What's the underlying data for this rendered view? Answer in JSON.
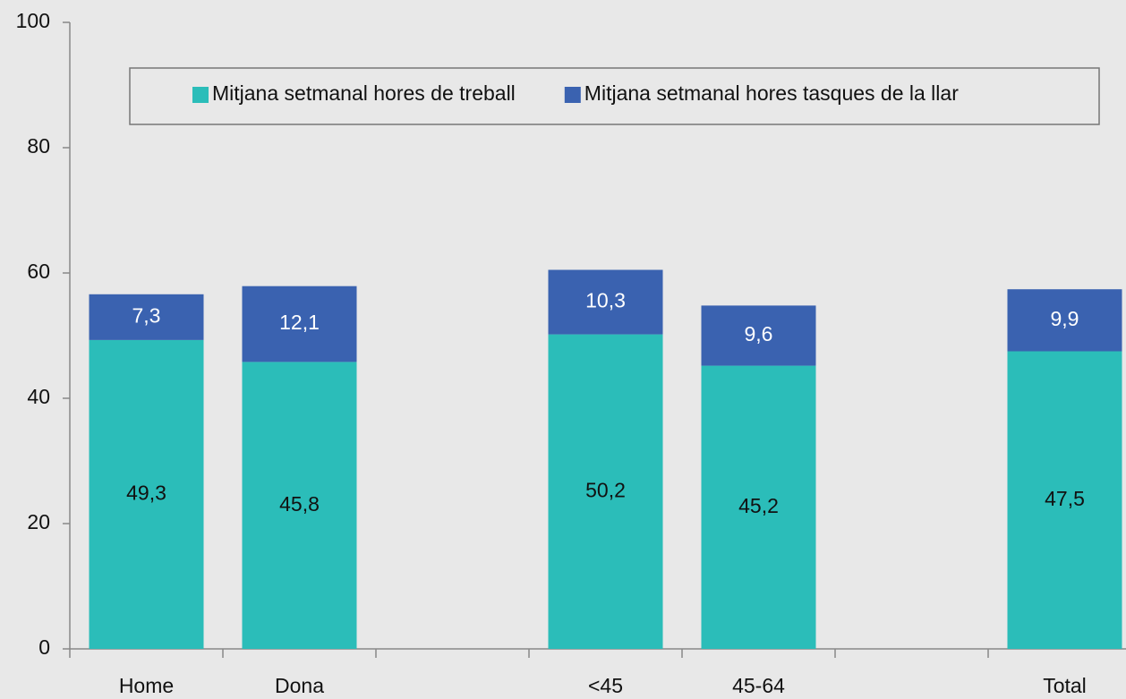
{
  "chart_data": {
    "type": "stacked_bar",
    "categories": [
      "Home",
      "Dona",
      null,
      "<45",
      "45-64",
      null,
      "Total"
    ],
    "series": [
      {
        "name": "Mitjana setmanal hores de treball",
        "color": "#2bbdb9",
        "values": [
          49.3,
          45.8,
          null,
          50.2,
          45.2,
          null,
          47.5
        ],
        "value_labels": [
          "49,3",
          "45,8",
          null,
          "50,2",
          "45,2",
          null,
          "47,5"
        ]
      },
      {
        "name": "Mitjana setmanal hores tasques de la llar",
        "color": "#3a62b0",
        "values": [
          7.3,
          12.1,
          null,
          10.3,
          9.6,
          null,
          9.9
        ],
        "value_labels": [
          "7,3",
          "12,1",
          null,
          "10,3",
          "9,6",
          null,
          "9,9"
        ]
      }
    ],
    "ylim": [
      0,
      100
    ],
    "yticks": [
      0,
      20,
      40,
      60,
      80,
      100
    ],
    "grid": false,
    "legend": "top"
  }
}
